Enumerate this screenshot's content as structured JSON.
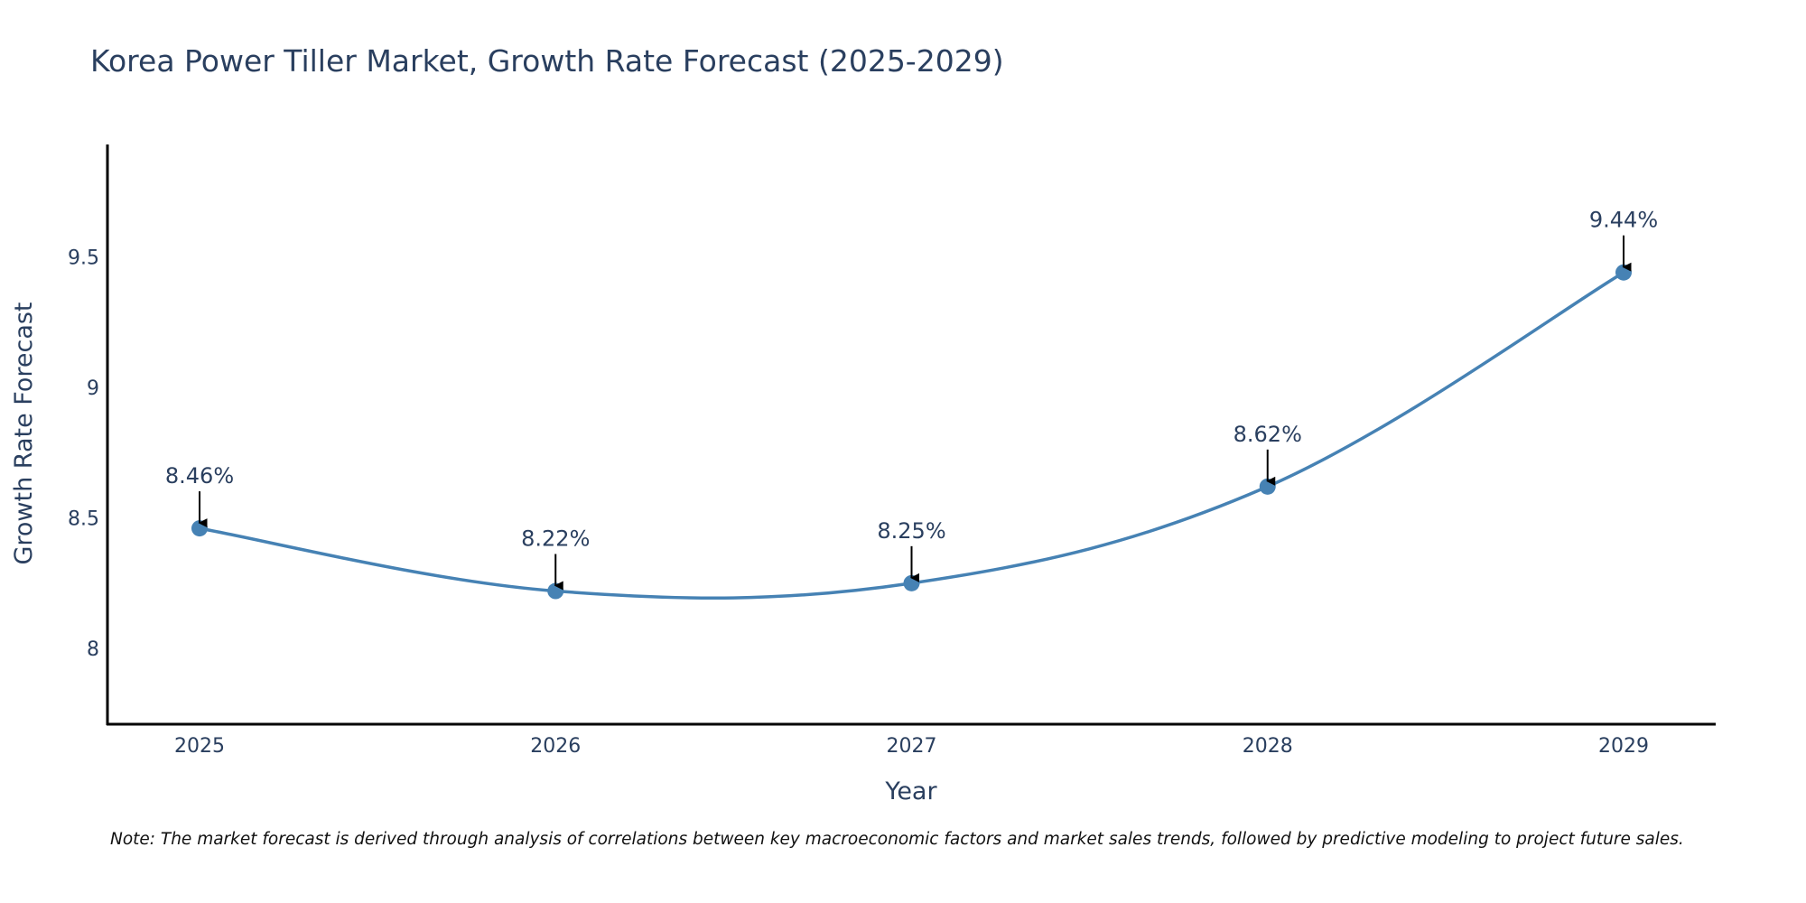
{
  "chart_data": {
    "type": "line",
    "title": "Korea Power Tiller Market, Growth Rate Forecast (2025-2029)",
    "xlabel": "Year",
    "ylabel": "Growth Rate Forecast",
    "categories": [
      "2025",
      "2026",
      "2027",
      "2028",
      "2029"
    ],
    "series": [
      {
        "name": "Growth Rate Forecast",
        "values": [
          8.46,
          8.22,
          8.25,
          8.62,
          9.44
        ],
        "labels": [
          "8.46%",
          "8.22%",
          "8.25%",
          "8.62%",
          "9.44%"
        ],
        "color": "#4682b4"
      }
    ],
    "yticks": [
      {
        "value": 8,
        "label": "8"
      },
      {
        "value": 8.5,
        "label": "8.5"
      },
      {
        "value": 9,
        "label": "9"
      },
      {
        "value": 9.5,
        "label": "9.5"
      }
    ],
    "ylim": [
      7.71,
      9.93
    ],
    "grid": false,
    "smoothing": "spline"
  },
  "note": "Note: The market forecast is derived through analysis of correlations between key macroeconomic factors and market sales trends, followed by predictive modeling to project future sales."
}
